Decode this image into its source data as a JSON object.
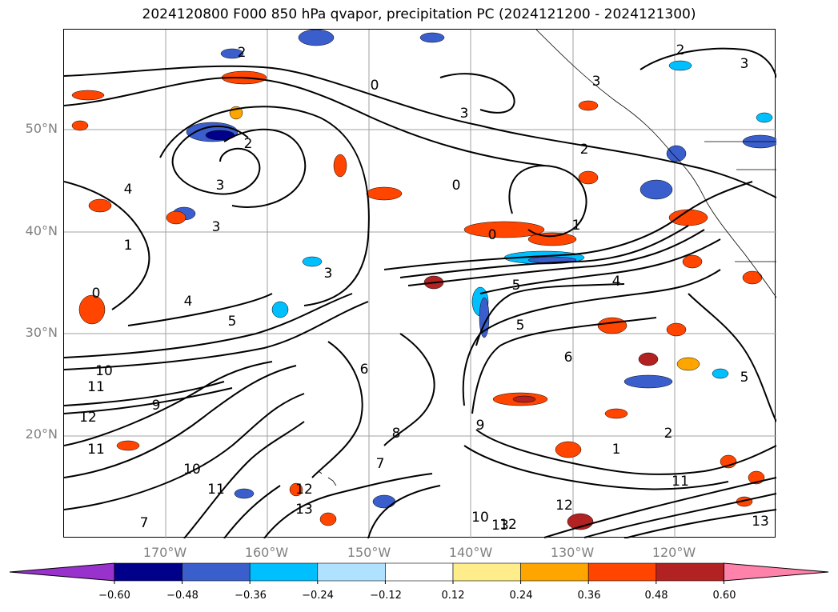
{
  "title": "2024120800 F000 850 hPa qvapor, precipitation PC (2024121200 - 2024121300)",
  "lat_labels": [
    "50°N",
    "40°N",
    "30°N",
    "20°N"
  ],
  "lat_values": [
    50,
    40,
    30,
    20
  ],
  "lon_labels": [
    "170°W",
    "160°W",
    "150°W",
    "140°W",
    "130°W",
    "120°W"
  ],
  "lon_values": [
    -170,
    -160,
    -150,
    -140,
    -130,
    -120
  ],
  "colorbar": {
    "tick_labels": [
      "−0.60",
      "−0.48",
      "−0.36",
      "−0.24",
      "−0.12",
      "0.12",
      "0.24",
      "0.36",
      "0.48",
      "0.60"
    ],
    "colors": [
      "#9932cc",
      "#00008b",
      "#3a5fcd",
      "#00bfff",
      "#b0e2ff",
      "#ffffff",
      "#ffec8b",
      "#ffa500",
      "#ff4500",
      "#b22222",
      "#ff82ab"
    ],
    "extend": "both"
  },
  "contour_labels": [
    "2",
    "3",
    "0",
    "1",
    "4",
    "5",
    "6",
    "8",
    "9",
    "10",
    "11",
    "12",
    "13",
    "7"
  ],
  "shading": {
    "negative_color": "#3a5fcd",
    "light_negative_color": "#00bfff",
    "positive_color": "#ff4500",
    "light_positive_color": "#ffa500",
    "strong_positive_color": "#b22222"
  }
}
